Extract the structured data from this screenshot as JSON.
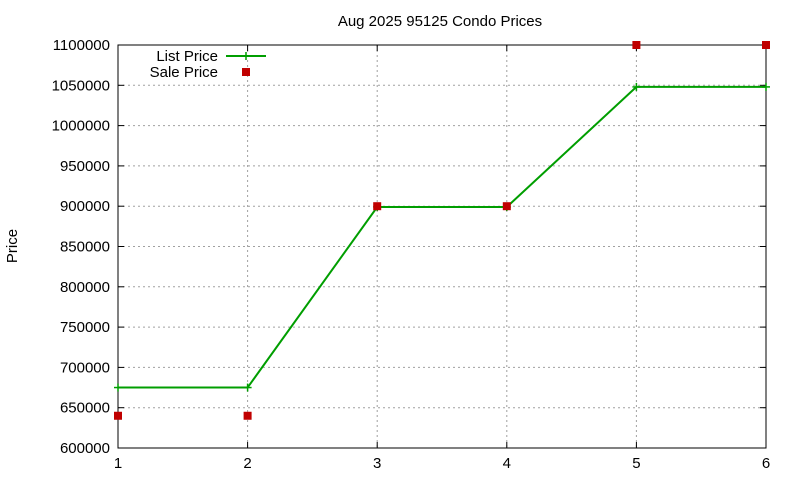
{
  "chart_data": {
    "type": "line",
    "title": "Aug 2025 95125 Condo Prices",
    "xlabel": "",
    "ylabel": "Price",
    "x": [
      1,
      2,
      3,
      4,
      5,
      6
    ],
    "xlim": [
      1,
      6
    ],
    "ylim": [
      600000,
      1100000
    ],
    "xticks": [
      "1",
      "2",
      "3",
      "4",
      "5",
      "6"
    ],
    "yticks": [
      "600000",
      "650000",
      "700000",
      "750000",
      "800000",
      "850000",
      "900000",
      "950000",
      "1000000",
      "1050000",
      "1100000"
    ],
    "grid": true,
    "legend_position": "top-left",
    "series": [
      {
        "name": "List Price",
        "style": "line-with-plus-markers",
        "color": "#009e00",
        "values": [
          675000,
          675000,
          899000,
          899000,
          1048000,
          1048000
        ]
      },
      {
        "name": "Sale Price",
        "style": "square-markers",
        "color": "#c00000",
        "values": [
          640000,
          640000,
          900000,
          900000,
          1100000,
          1100000
        ]
      }
    ]
  }
}
